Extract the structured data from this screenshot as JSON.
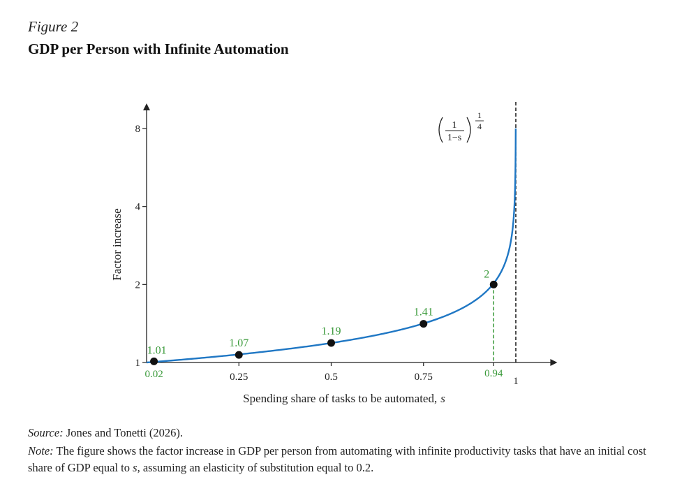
{
  "figure_label": "Figure 2",
  "figure_title": "GDP per Person with Infinite Automation",
  "source": {
    "label": "Source:",
    "text": " Jones and Tonetti (2026)."
  },
  "note": {
    "label": "Note:",
    "text_before": " The figure shows the factor increase in GDP per person from automating with infinite productivity tasks that have an initial cost share of GDP equal to ",
    "var": "s",
    "text_after": ", assuming an elasticity of substitution equal to 0.2."
  },
  "chart_data": {
    "type": "line",
    "title": "",
    "xlabel": "Spending share of tasks to be automated,",
    "xlabel_var": "s",
    "ylabel": "Factor increase",
    "y_scale": "log",
    "xlim": [
      0,
      1.05
    ],
    "ylim": [
      1,
      8
    ],
    "x_ticks": [
      {
        "value": 0.02,
        "label": "0.02",
        "color": "#3a9a3a"
      },
      {
        "value": 0.25,
        "label": "0.25",
        "color": "#222222"
      },
      {
        "value": 0.5,
        "label": "0.5",
        "color": "#222222"
      },
      {
        "value": 0.75,
        "label": "0.75",
        "color": "#222222"
      },
      {
        "value": 0.94,
        "label": "0.94",
        "color": "#3a9a3a"
      },
      {
        "value": 1,
        "label": "1",
        "color": "#222222"
      }
    ],
    "y_ticks": [
      {
        "value": 1,
        "label": "1"
      },
      {
        "value": 2,
        "label": "2"
      },
      {
        "value": 4,
        "label": "4"
      },
      {
        "value": 8,
        "label": "8"
      }
    ],
    "formula": {
      "num": "1",
      "den": "1−s",
      "exp_num": "1",
      "exp_den": "4"
    },
    "curve_color": "#1f77c4",
    "label_color": "#3a9a3a",
    "asymptote_x": 1,
    "points": [
      {
        "x": 0.02,
        "y": 1.01,
        "label": "1.01"
      },
      {
        "x": 0.25,
        "y": 1.07,
        "label": "1.07"
      },
      {
        "x": 0.5,
        "y": 1.19,
        "label": "1.19"
      },
      {
        "x": 0.75,
        "y": 1.41,
        "label": "1.41"
      },
      {
        "x": 0.94,
        "y": 2,
        "label": "2"
      }
    ],
    "series": [
      {
        "name": "",
        "function": "(1/(1-s))^(1/4)",
        "x_range": [
          0,
          0.9995
        ]
      }
    ],
    "grid": false,
    "legend": "none"
  }
}
